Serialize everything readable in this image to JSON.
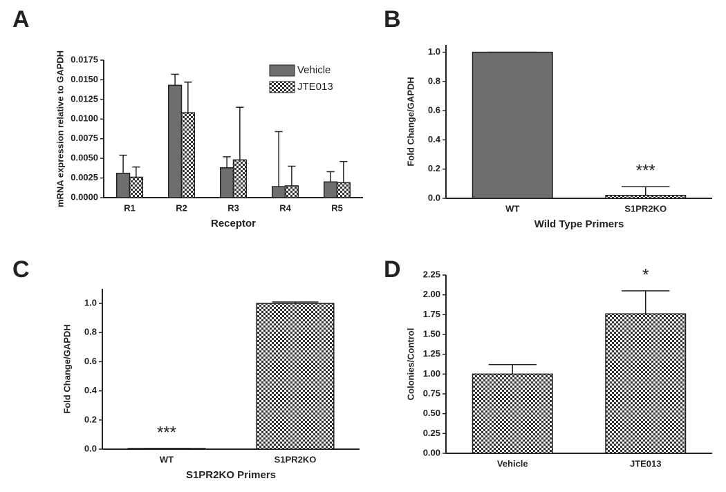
{
  "chart_data": [
    {
      "type": "bar",
      "panel": "A",
      "ylabel": "mRNA expression relative to GAPDH",
      "xlabel": "Receptor",
      "categories": [
        "R1",
        "R2",
        "R3",
        "R4",
        "R5"
      ],
      "series": [
        {
          "name": "Vehicle",
          "color": "#6e6e6e",
          "fill": "solid",
          "values": [
            0.0031,
            0.0143,
            0.0038,
            0.0014,
            0.002
          ],
          "errors": [
            0.0023,
            0.0014,
            0.0014,
            0.007,
            0.0013
          ]
        },
        {
          "name": "JTE013",
          "color": "#404040",
          "fill": "checker",
          "values": [
            0.0026,
            0.0108,
            0.0048,
            0.0015,
            0.0019
          ],
          "errors": [
            0.0013,
            0.0039,
            0.0067,
            0.0025,
            0.0027
          ]
        }
      ],
      "ylim": [
        0,
        0.0175
      ],
      "yticks": [
        {
          "value": 0,
          "label": "0.0000"
        },
        0.0025,
        {
          "value": 0.005,
          "label": "0.0050"
        },
        0.0075,
        {
          "value": 0.01,
          "label": "0.0100"
        },
        0.0125,
        {
          "value": 0.015,
          "label": "0.0150"
        },
        0.0175
      ],
      "legend": "upper right"
    },
    {
      "type": "bar",
      "panel": "B",
      "ylabel": "Fold Change/GAPDH",
      "xlabel": "Wild Type Primers",
      "categories": [
        "WT",
        "S1PR2KO"
      ],
      "values": [
        1.0,
        0.02
      ],
      "errors": [
        0,
        0.06
      ],
      "color": "#6e6e6e",
      "bar_fills": [
        "solid",
        "checker"
      ],
      "ylim": [
        0,
        1.05
      ],
      "yticks": [
        {
          "value": 0,
          "label": "0.0"
        },
        0.2,
        0.4,
        0.6,
        0.8,
        {
          "value": 1,
          "label": "1.0"
        }
      ],
      "annotations": [
        {
          "text": "***",
          "category": "S1PR2KO"
        }
      ]
    },
    {
      "type": "bar",
      "panel": "C",
      "ylabel": "Fold Change/GAPDH",
      "xlabel": "S1PR2KO Primers",
      "categories": [
        "WT",
        "S1PR2KO"
      ],
      "values": [
        0.005,
        1.0
      ],
      "errors": [
        0,
        0.01
      ],
      "color": "#404040",
      "bar_fills": [
        "checker",
        "checker"
      ],
      "ylim": [
        0,
        1.1
      ],
      "yticks": [
        {
          "value": 0,
          "label": "0.0"
        },
        0.2,
        0.4,
        0.6,
        0.8,
        {
          "value": 1,
          "label": "1.0"
        }
      ],
      "annotations": [
        {
          "text": "***",
          "category": "WT"
        }
      ]
    },
    {
      "type": "bar",
      "panel": "D",
      "ylabel": "Colonies/Control",
      "xlabel": null,
      "categories": [
        "Vehicle",
        "JTE013"
      ],
      "values": [
        1.0,
        1.76
      ],
      "errors": [
        0.12,
        0.29
      ],
      "color": "#404040",
      "bar_fills": [
        "checker",
        "checker"
      ],
      "ylim": [
        0,
        2.25
      ],
      "yticks": [
        {
          "value": 0,
          "label": "0.00"
        },
        0.25,
        {
          "value": 0.5,
          "label": "0.50"
        },
        0.75,
        {
          "value": 1,
          "label": "1.00"
        },
        1.25,
        {
          "value": 1.5,
          "label": "1.50"
        },
        1.75,
        {
          "value": 2,
          "label": "2.00"
        },
        2.25
      ],
      "annotations": [
        {
          "text": "*",
          "category": "JTE013"
        }
      ]
    }
  ]
}
